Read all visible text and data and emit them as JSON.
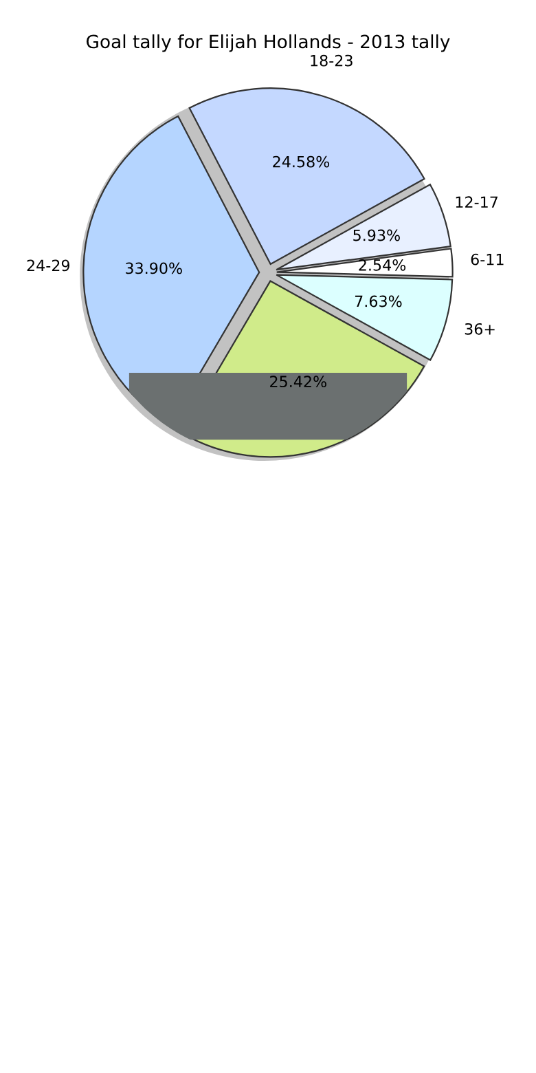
{
  "chart_data": {
    "type": "pie",
    "title": "Goal tally for Elijah Hollands - 2013 tally",
    "categories": [
      "6-11",
      "12-17",
      "18-23",
      "24-29",
      null,
      "36+"
    ],
    "values": [
      2.54,
      5.93,
      24.58,
      33.9,
      25.42,
      7.63
    ],
    "value_labels": [
      "2.54%",
      "5.93%",
      "24.58%",
      "33.90%",
      "25.42%",
      "7.63%"
    ],
    "colors": [
      "#ffffff",
      "#e8f0ff",
      "#c4d8ff",
      "#b5d5ff",
      "#d0eb8a",
      "#dcffff"
    ]
  }
}
